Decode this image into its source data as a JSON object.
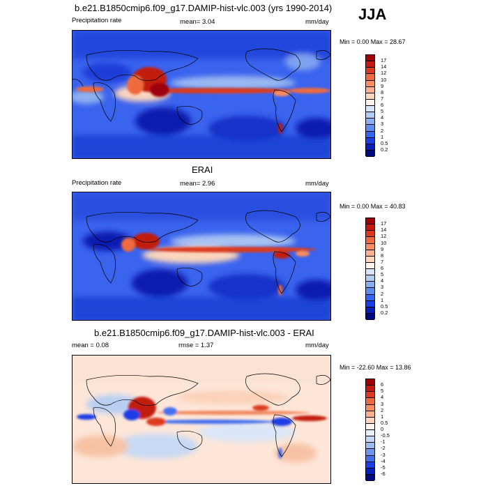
{
  "season_label": "JJA",
  "panels": [
    {
      "title": "b.e21.B1850cmip6.f09_g17.DAMIP-hist-vlc.003 (yrs 1990-2014)",
      "left_label": "Precipitation rate",
      "mid_label": "mean=  3.04",
      "right_label": "mm/day",
      "minmax": "Min =   0.00 Max =  28.67",
      "levels": [
        "17",
        "14",
        "12",
        "10",
        "9",
        "8",
        "7",
        "6",
        "5",
        "4",
        "3",
        "2",
        "1",
        "0.5",
        "0.2"
      ],
      "colors": [
        "#9e0108",
        "#c21a0e",
        "#dc3a1e",
        "#ef6a3e",
        "#f88e62",
        "#fbb08f",
        "#fdd5bd",
        "#fff2e8",
        "#d6e5f7",
        "#b3ccf2",
        "#8aaeef",
        "#5f8bf0",
        "#3366f5",
        "#1b3ee6",
        "#0a1eb8",
        "#000a80"
      ]
    },
    {
      "title": "ERAI",
      "left_label": "Precipitation rate",
      "mid_label": "mean=   2.96",
      "right_label": "mm/day",
      "minmax": "Min =   0.00 Max =  40.83",
      "levels": [
        "17",
        "14",
        "12",
        "10",
        "9",
        "8",
        "7",
        "6",
        "5",
        "4",
        "3",
        "2",
        "1",
        "0.5",
        "0.2"
      ],
      "colors": [
        "#9e0108",
        "#c21a0e",
        "#dc3a1e",
        "#ef6a3e",
        "#f88e62",
        "#fbb08f",
        "#fdd5bd",
        "#fff2e8",
        "#d6e5f7",
        "#b3ccf2",
        "#8aaeef",
        "#5f8bf0",
        "#3366f5",
        "#1b3ee6",
        "#0a1eb8",
        "#000a80"
      ]
    },
    {
      "title": "b.e21.B1850cmip6.f09_g17.DAMIP-hist-vlc.003 - ERAI",
      "left_label": "mean =   0.08",
      "mid_label": "rmse =    1.37",
      "right_label": "mm/day",
      "minmax": "Min = -22.60 Max =  13.86",
      "levels": [
        "6",
        "5",
        "4",
        "3",
        "2",
        "1",
        "0.5",
        "0",
        "-0.5",
        "-1",
        "-2",
        "-3",
        "-4",
        "-5",
        "-6"
      ],
      "colors": [
        "#9e0108",
        "#c21a0e",
        "#dc3a1e",
        "#ef6a3e",
        "#f88e62",
        "#fbb08f",
        "#fdd5bd",
        "#fff2e8",
        "#e6f0fb",
        "#c3d7f4",
        "#9ebbf0",
        "#6f95ee",
        "#4470f0",
        "#1b3ee6",
        "#0a1eb8",
        "#000a80"
      ]
    }
  ]
}
